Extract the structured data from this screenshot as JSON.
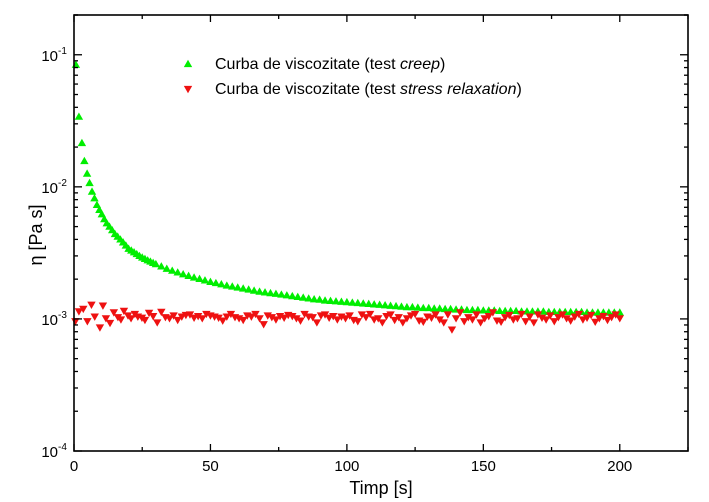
{
  "chart_data": {
    "type": "scatter",
    "title": "",
    "xlabel": "Timp [s]",
    "ylabel": "η [Pa s]",
    "xlim": [
      0,
      225
    ],
    "ylim": [
      0.0001,
      0.2
    ],
    "yscale": "log",
    "grid": false,
    "legend_position": "top-center",
    "x_ticks": [
      0,
      50,
      100,
      150,
      200
    ],
    "x_tick_labels": [
      "0",
      "50",
      "100",
      "150",
      "200"
    ],
    "y_ticks": [
      0.0001,
      0.001,
      0.01,
      0.1
    ],
    "y_tick_labels": [
      {
        "base": "10",
        "exp": "-4"
      },
      {
        "base": "10",
        "exp": "-3"
      },
      {
        "base": "10",
        "exp": "-2"
      },
      {
        "base": "10",
        "exp": "-1"
      }
    ],
    "series": [
      {
        "name": "Curba de viscozitate (test creep)",
        "legend_parts": [
          {
            "text": "Curba de viscozitate (test ",
            "italic": false
          },
          {
            "text": "creep",
            "italic": true
          },
          {
            "text": ")",
            "italic": false
          }
        ],
        "marker": "triangle-up",
        "color": "#00ee00",
        "x": [
          0.7,
          1.8,
          2.9,
          3.8,
          4.8,
          5.7,
          6.6,
          7.5,
          8.4,
          9.3,
          10.2,
          11.1,
          12,
          13,
          14,
          15,
          16,
          17,
          18,
          19,
          20,
          21,
          22,
          23,
          24,
          25,
          26,
          27,
          28,
          29,
          30,
          32,
          34,
          36,
          38,
          40,
          42,
          44,
          46,
          48,
          50,
          52,
          54,
          56,
          58,
          60,
          62,
          64,
          66,
          68,
          70,
          72,
          74,
          76,
          78,
          80,
          82,
          84,
          86,
          88,
          90,
          92,
          94,
          96,
          98,
          100,
          102,
          104,
          106,
          108,
          110,
          112,
          114,
          116,
          118,
          120,
          122,
          124,
          126,
          128,
          130,
          132,
          134,
          136,
          138,
          140,
          142,
          144,
          146,
          148,
          150,
          152,
          154,
          156,
          158,
          160,
          162,
          164,
          166,
          168,
          170,
          172,
          174,
          176,
          178,
          180,
          182,
          184,
          186,
          188,
          190,
          192,
          194,
          196,
          198,
          200
        ],
        "y": [
          0.084,
          0.034,
          0.0215,
          0.0157,
          0.0126,
          0.0107,
          0.0092,
          0.0082,
          0.0073,
          0.0067,
          0.0062,
          0.0057,
          0.0053,
          0.005,
          0.0047,
          0.0044,
          0.0042,
          0.004,
          0.0038,
          0.0036,
          0.0034,
          0.0033,
          0.0032,
          0.0031,
          0.003,
          0.00292,
          0.00285,
          0.00278,
          0.00272,
          0.00266,
          0.0026,
          0.0025,
          0.0024,
          0.00232,
          0.00225,
          0.00218,
          0.00212,
          0.00206,
          0.00201,
          0.00196,
          0.00191,
          0.00187,
          0.00183,
          0.00179,
          0.00176,
          0.00173,
          0.0017,
          0.00167,
          0.00164,
          0.00161,
          0.00159,
          0.00157,
          0.00155,
          0.00153,
          0.00151,
          0.00149,
          0.00147,
          0.00145,
          0.00143,
          0.00141,
          0.0014,
          0.00138,
          0.00137,
          0.00136,
          0.00135,
          0.00134,
          0.00133,
          0.00132,
          0.00131,
          0.0013,
          0.00129,
          0.00128,
          0.00127,
          0.00126,
          0.00125,
          0.00124,
          0.00123,
          0.00123,
          0.00122,
          0.00121,
          0.00121,
          0.0012,
          0.0012,
          0.00119,
          0.00119,
          0.00118,
          0.00118,
          0.00117,
          0.00117,
          0.00117,
          0.00116,
          0.00116,
          0.00116,
          0.00115,
          0.00115,
          0.00115,
          0.00115,
          0.00114,
          0.00114,
          0.00114,
          0.00114,
          0.00114,
          0.00113,
          0.00113,
          0.00113,
          0.00113,
          0.00113,
          0.00113,
          0.00113,
          0.00112,
          0.00112,
          0.00112,
          0.00112,
          0.00112,
          0.00112,
          0.00112
        ]
      },
      {
        "name": "Curba de viscozitate (test stress relaxation)",
        "legend_parts": [
          {
            "text": "Curba de viscozitate (test ",
            "italic": false
          },
          {
            "text": "stress relaxation",
            "italic": true
          },
          {
            "text": ")",
            "italic": false
          }
        ],
        "marker": "triangle-down",
        "color": "#ee1111",
        "x": [
          0.5,
          1.8,
          3.4,
          4.9,
          6.4,
          7.6,
          9.5,
          10.6,
          11.7,
          13.2,
          14.6,
          16.1,
          17.2,
          18.3,
          19.8,
          20.9,
          22.3,
          23.4,
          24.9,
          26.0,
          27.5,
          29.0,
          30.5,
          32.0,
          33.5,
          35.0,
          36.5,
          38.0,
          39.5,
          41.0,
          42.5,
          44.0,
          45.5,
          47.0,
          48.5,
          50.0,
          51.5,
          53.0,
          54.5,
          56.0,
          57.5,
          59.0,
          60.5,
          62.0,
          63.5,
          65.0,
          66.5,
          68.0,
          69.5,
          71.0,
          72.5,
          74.0,
          75.5,
          77.0,
          78.5,
          80.0,
          81.5,
          83.0,
          84.5,
          86.0,
          87.5,
          89.0,
          90.5,
          92.0,
          93.5,
          95.0,
          96.5,
          98.0,
          99.5,
          101.0,
          102.5,
          104.0,
          105.5,
          107.0,
          108.5,
          110.0,
          111.5,
          113.0,
          114.5,
          116.0,
          117.5,
          119.0,
          120.5,
          122.0,
          123.5,
          125.0,
          126.5,
          128.0,
          129.5,
          131.0,
          132.5,
          134.0,
          135.5,
          137.0,
          138.5,
          140.0,
          141.5,
          143.0,
          144.5,
          146.0,
          147.5,
          149.0,
          150.5,
          152.0,
          153.5,
          155.0,
          156.5,
          158.0,
          159.5,
          161.0,
          162.5,
          164.0,
          165.5,
          167.0,
          168.5,
          170.0,
          171.5,
          173.0,
          174.5,
          176.0,
          177.5,
          179.0,
          180.5,
          182.0,
          183.5,
          185.0,
          186.5,
          188.0,
          189.5,
          191.0,
          192.5,
          194.0,
          195.5,
          197.0,
          198.5,
          200.0
        ],
        "y": [
          0.00096,
          0.00114,
          0.00119,
          0.00096,
          0.00128,
          0.00104,
          0.00086,
          0.00126,
          0.00101,
          0.00093,
          0.00112,
          0.00103,
          0.00099,
          0.00115,
          0.00106,
          0.00101,
          0.00109,
          0.00104,
          0.00102,
          0.00098,
          0.00111,
          0.00105,
          0.00094,
          0.00113,
          0.00103,
          0.00101,
          0.00106,
          0.00098,
          0.00104,
          0.00107,
          0.00108,
          0.00102,
          0.00105,
          0.00101,
          0.00109,
          0.00106,
          0.00104,
          0.00102,
          0.00097,
          0.00104,
          0.00109,
          0.00103,
          0.00101,
          0.00098,
          0.00106,
          0.00104,
          0.00109,
          0.00101,
          0.00091,
          0.00106,
          0.00103,
          0.00099,
          0.00105,
          0.00102,
          0.00107,
          0.00105,
          0.00101,
          0.00097,
          0.00109,
          0.00104,
          0.00103,
          0.00094,
          0.00106,
          0.00108,
          0.00102,
          0.00105,
          0.00099,
          0.00104,
          0.00101,
          0.00106,
          0.00098,
          0.00096,
          0.00108,
          0.00103,
          0.00109,
          0.00099,
          0.00101,
          0.00094,
          0.00105,
          0.00108,
          0.00098,
          0.00103,
          0.00094,
          0.00101,
          0.00106,
          0.00109,
          0.00097,
          0.00095,
          0.00104,
          0.00102,
          0.00108,
          0.00099,
          0.00094,
          0.00108,
          0.00083,
          0.00101,
          0.00112,
          0.00096,
          0.00103,
          0.00099,
          0.00108,
          0.00094,
          0.00101,
          0.00105,
          0.00112,
          0.00097,
          0.00095,
          0.00103,
          0.00107,
          0.00099,
          0.00101,
          0.00109,
          0.00096,
          0.00104,
          0.00094,
          0.00108,
          0.00102,
          0.00099,
          0.00106,
          0.00096,
          0.00103,
          0.00108,
          0.00101,
          0.00097,
          0.00104,
          0.00109,
          0.00099,
          0.00102,
          0.00107,
          0.00095,
          0.00101,
          0.00105,
          0.00098,
          0.00103,
          0.00108,
          0.00101
        ]
      }
    ]
  }
}
